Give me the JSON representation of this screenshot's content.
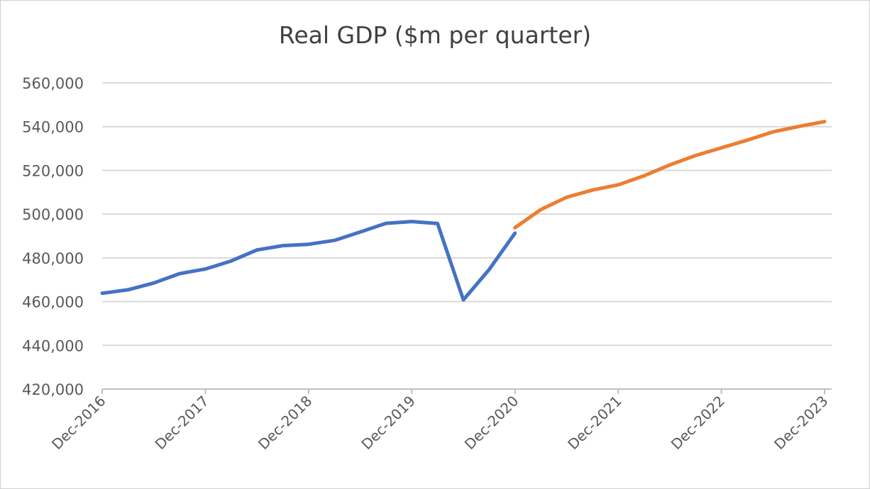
{
  "chart_data": {
    "type": "line",
    "title": "Real GDP ($m per quarter)",
    "xlabel": "",
    "ylabel": "",
    "ylim": [
      420000,
      560000
    ],
    "y_ticks": [
      "420,000",
      "440,000",
      "460,000",
      "480,000",
      "500,000",
      "520,000",
      "540,000",
      "560,000"
    ],
    "y_tick_values": [
      420000,
      440000,
      460000,
      480000,
      500000,
      520000,
      540000,
      560000
    ],
    "x_tick_labels": [
      "Dec-2016",
      "Dec-2017",
      "Dec-2018",
      "Dec-2019",
      "Dec-2020",
      "Dec-2021",
      "Dec-2022",
      "Dec-2023"
    ],
    "x": [
      "Dec-2016",
      "Mar-2017",
      "Jun-2017",
      "Sep-2017",
      "Dec-2017",
      "Mar-2018",
      "Jun-2018",
      "Sep-2018",
      "Dec-2018",
      "Mar-2019",
      "Jun-2019",
      "Sep-2019",
      "Dec-2019",
      "Mar-2020",
      "Jun-2020",
      "Sep-2020",
      "Dec-2020",
      "Mar-2021",
      "Jun-2021",
      "Sep-2021",
      "Dec-2021",
      "Mar-2022",
      "Jun-2022",
      "Sep-2022",
      "Dec-2022",
      "Mar-2023",
      "Jun-2023",
      "Sep-2023",
      "Dec-2023"
    ],
    "series": [
      {
        "color": "#4472c4",
        "values": [
          463800,
          465400,
          468500,
          472800,
          474900,
          478600,
          483600,
          485600,
          486200,
          488000,
          491800,
          495800,
          496600,
          495700,
          460800,
          474700,
          491300,
          null,
          null,
          null,
          null,
          null,
          null,
          null,
          null,
          null,
          null,
          null,
          null
        ]
      },
      {
        "color": "#ed7d31",
        "values": [
          null,
          null,
          null,
          null,
          null,
          null,
          null,
          null,
          null,
          null,
          null,
          null,
          null,
          null,
          null,
          null,
          493800,
          502100,
          507700,
          511000,
          513400,
          517500,
          522500,
          526800,
          530300,
          533800,
          537600,
          540100,
          542300
        ]
      }
    ],
    "grid": true,
    "legend": "none"
  },
  "colors": {
    "gridline": "#d9d9d9",
    "axis": "#bfbfbf",
    "text": "#595959",
    "title": "#404040"
  }
}
